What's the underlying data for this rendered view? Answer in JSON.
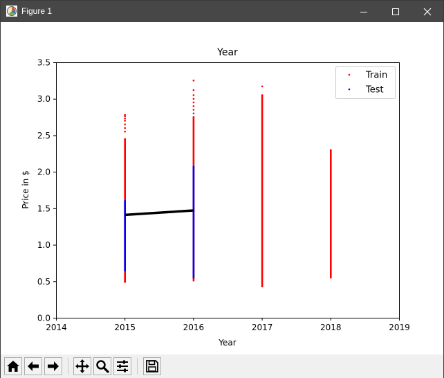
{
  "window": {
    "title": "Figure 1",
    "controls": [
      "minimize-icon",
      "maximize-icon",
      "close-icon"
    ]
  },
  "toolbar": {
    "buttons": [
      "home-icon",
      "back-icon",
      "forward-icon",
      "pan-icon",
      "zoom-icon",
      "configure-subplots-icon",
      "save-icon"
    ]
  },
  "chart_data": {
    "type": "scatter",
    "title": "Year",
    "xlabel": "Year",
    "ylabel": "Price in $",
    "xlim": [
      2014,
      2019
    ],
    "ylim": [
      0,
      3.5
    ],
    "xticks": [
      "2014",
      "2015",
      "2016",
      "2017",
      "2018",
      "2019"
    ],
    "yticks": [
      "0.0",
      "0.5",
      "1.0",
      "1.5",
      "2.0",
      "2.5",
      "3.0",
      "3.5"
    ],
    "grid": false,
    "legend_position": "top-right",
    "series": [
      {
        "name": "Train",
        "kind": "scatter",
        "color": "#ff0000",
        "columns": [
          {
            "x": 2015,
            "ymin": 0.49,
            "ymax": 2.45,
            "outliers": [
              2.55,
              2.6,
              2.65,
              2.7,
              2.73,
              2.76,
              2.78
            ]
          },
          {
            "x": 2016,
            "ymin": 0.51,
            "ymax": 2.75,
            "outliers": [
              2.8,
              2.85,
              2.9,
              2.95,
              3.0,
              3.05,
              3.12,
              3.25
            ]
          },
          {
            "x": 2017,
            "ymin": 0.43,
            "ymax": 3.05,
            "outliers": [
              3.17
            ]
          },
          {
            "x": 2018,
            "ymin": 0.55,
            "ymax": 2.3,
            "outliers": []
          }
        ]
      },
      {
        "name": "Test",
        "kind": "scatter",
        "color": "#0000ff",
        "columns": [
          {
            "x": 2015,
            "ymin": 0.65,
            "ymax": 1.6,
            "outliers": []
          },
          {
            "x": 2016,
            "ymin": 0.55,
            "ymax": 2.07,
            "outliers": []
          }
        ]
      },
      {
        "name": "",
        "kind": "line",
        "color": "#000000",
        "points": [
          [
            2015,
            1.41
          ],
          [
            2016,
            1.47
          ]
        ]
      }
    ]
  }
}
